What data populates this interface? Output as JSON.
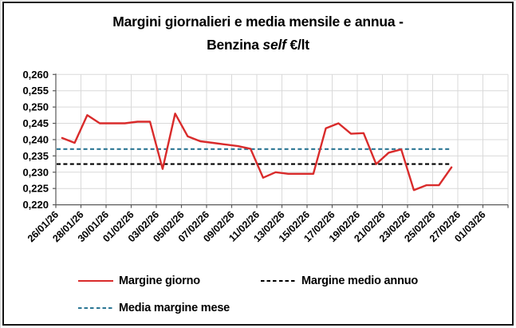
{
  "window": {
    "background": "#ffffff",
    "frame_border_color": "#141414"
  },
  "title": {
    "line1": "Margini giornalieri e media mensile e annua -",
    "line2_pre": "Benzina ",
    "line2_italic": "self",
    "line2_post": " €/lt"
  },
  "legend": {
    "items": [
      {
        "label": "Margine giorno",
        "style": "solid",
        "color": "#d92b2b"
      },
      {
        "label": "Margine medio annuo",
        "style": "dashed",
        "color": "#000000"
      },
      {
        "label": "Media margine mese",
        "style": "dashed",
        "color": "#2b7694"
      }
    ]
  },
  "chart_data": {
    "type": "line",
    "title": "Margini giornalieri e media mensile e annua - Benzina self €/lt",
    "x": [
      "26/01/26",
      "27/01/26",
      "28/01/26",
      "29/01/26",
      "30/01/26",
      "31/01/26",
      "01/02/26",
      "02/02/26",
      "03/02/26",
      "04/02/26",
      "05/02/26",
      "06/02/26",
      "07/02/26",
      "08/02/26",
      "09/02/26",
      "10/02/26",
      "11/02/26",
      "12/02/26",
      "13/02/26",
      "14/02/26",
      "15/02/26",
      "16/02/26",
      "17/02/26",
      "18/02/26",
      "19/02/26",
      "20/02/26",
      "21/02/26",
      "22/02/26",
      "23/02/26",
      "24/02/26",
      "25/02/26",
      "26/02/26"
    ],
    "series": [
      {
        "name": "Margine giorno",
        "color": "#d92b2b",
        "style": "solid",
        "values": [
          0.2405,
          0.239,
          0.2475,
          0.245,
          0.245,
          0.245,
          0.2455,
          0.2455,
          0.231,
          0.248,
          0.241,
          0.2395,
          0.239,
          0.2385,
          0.238,
          0.2372,
          0.2283,
          0.23,
          0.2295,
          0.2295,
          0.2295,
          0.2435,
          0.245,
          0.2418,
          0.242,
          0.2325,
          0.236,
          0.237,
          0.2245,
          0.226,
          0.226,
          0.2315
        ]
      },
      {
        "name": "Media margine mese",
        "color": "#2b7694",
        "style": "dashed",
        "constant_value": 0.2371
      },
      {
        "name": "Margine medio annuo",
        "color": "#000000",
        "style": "dashed",
        "constant_value": 0.2325
      }
    ],
    "y_axis": {
      "min": 0.22,
      "max": 0.26,
      "step": 0.005,
      "tick_labels": [
        "0,260",
        "0,255",
        "0,250",
        "0,245",
        "0,240",
        "0,235",
        "0,230",
        "0,225",
        "0,220"
      ],
      "tick_values": [
        0.26,
        0.255,
        0.25,
        0.245,
        0.24,
        0.235,
        0.23,
        0.225,
        0.22
      ]
    },
    "x_axis": {
      "tick_labels": [
        "26/01/26",
        "28/01/26",
        "30/01/26",
        "01/02/26",
        "03/02/26",
        "05/02/26",
        "07/02/26",
        "09/02/26",
        "11/02/26",
        "13/02/26",
        "15/02/26",
        "17/02/26",
        "19/02/26",
        "21/02/26",
        "23/02/26",
        "25/02/26",
        "27/02/26",
        "01/03/26"
      ],
      "total_categories": 36,
      "label_rotation_deg": -45
    },
    "grid": true,
    "grid_color": "#d9d9d9",
    "axis_color": "#595959",
    "legend_position": "bottom",
    "ylim": [
      0.22,
      0.26
    ]
  }
}
